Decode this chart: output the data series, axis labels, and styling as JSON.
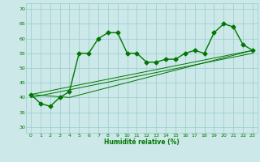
{
  "xlabel": "Humidité relative (%)",
  "bg_color": "#cce8e8",
  "grid_color": "#99cccc",
  "line_color": "#007700",
  "markersize": 2.5,
  "linewidth": 1.0,
  "ylim": [
    28,
    72
  ],
  "yticks": [
    30,
    35,
    40,
    45,
    50,
    55,
    60,
    65,
    70
  ],
  "xlim": [
    -0.5,
    23.5
  ],
  "xticks": [
    0,
    1,
    2,
    3,
    4,
    5,
    6,
    7,
    8,
    9,
    10,
    11,
    12,
    13,
    14,
    15,
    16,
    17,
    18,
    19,
    20,
    21,
    22,
    23
  ],
  "main_x": [
    0,
    1,
    2,
    3,
    4,
    5,
    6,
    7,
    8,
    9,
    10,
    11,
    12,
    13,
    14,
    15,
    16,
    17,
    18,
    19,
    20,
    21,
    22,
    23
  ],
  "main_y": [
    41,
    38,
    37,
    40,
    42,
    55,
    55,
    60,
    62,
    62,
    55,
    55,
    52,
    52,
    53,
    53,
    55,
    56,
    55,
    62,
    65,
    64,
    58,
    56
  ],
  "trend1_x": [
    0,
    23
  ],
  "trend1_y": [
    40,
    55
  ],
  "trend2_x": [
    0,
    23
  ],
  "trend2_y": [
    41,
    56
  ],
  "trend3_x": [
    0,
    4,
    23
  ],
  "trend3_y": [
    41,
    40,
    56
  ]
}
